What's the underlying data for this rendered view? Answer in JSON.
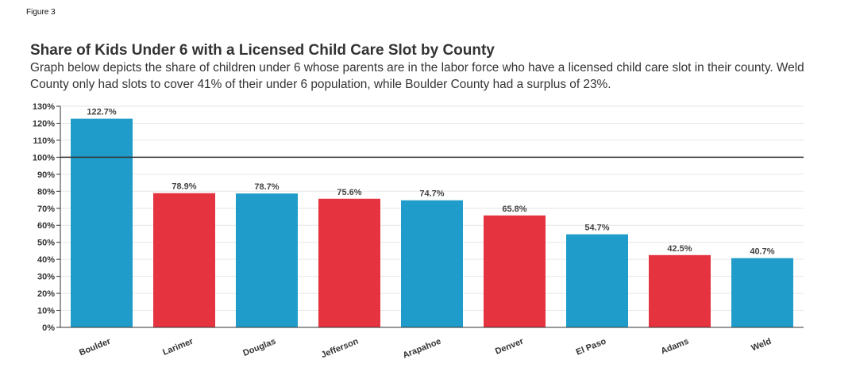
{
  "figure_label": "Figure 3",
  "title": "Share of Kids Under 6 with a Licensed Child Care Slot by County",
  "subtitle": "Graph below depicts the share of children under 6 whose parents are in the labor force who have a licensed child care slot in their county. Weld County only had slots to cover 41% of their under 6 population, while Boulder County had a surplus of 23%.",
  "colors": {
    "blue": "#1f9cc9",
    "red": "#e5333f",
    "reference_line": "#333333",
    "grid": "#e6e6e6"
  },
  "chart_data": {
    "type": "bar",
    "title": "Share of Kids Under 6 with a Licensed Child Care Slot by County",
    "xlabel": "",
    "ylabel": "",
    "ylim": [
      0,
      130
    ],
    "yticks": [
      0,
      10,
      20,
      30,
      40,
      50,
      60,
      70,
      80,
      90,
      100,
      110,
      120,
      130
    ],
    "ytick_suffix": "%",
    "grid": true,
    "reference_line": 100,
    "categories": [
      "Boulder",
      "Larimer",
      "Douglas",
      "Jefferson",
      "Arapahoe",
      "Denver",
      "El Paso",
      "Adams",
      "Weld"
    ],
    "values": [
      122.7,
      78.9,
      78.7,
      75.6,
      74.7,
      65.8,
      54.7,
      42.5,
      40.7
    ],
    "data_labels": [
      "122.7%",
      "78.9%",
      "78.7%",
      "75.6%",
      "74.7%",
      "65.8%",
      "54.7%",
      "42.5%",
      "40.7%"
    ],
    "bar_colors": [
      "blue",
      "red",
      "blue",
      "red",
      "blue",
      "red",
      "blue",
      "red",
      "blue"
    ]
  }
}
